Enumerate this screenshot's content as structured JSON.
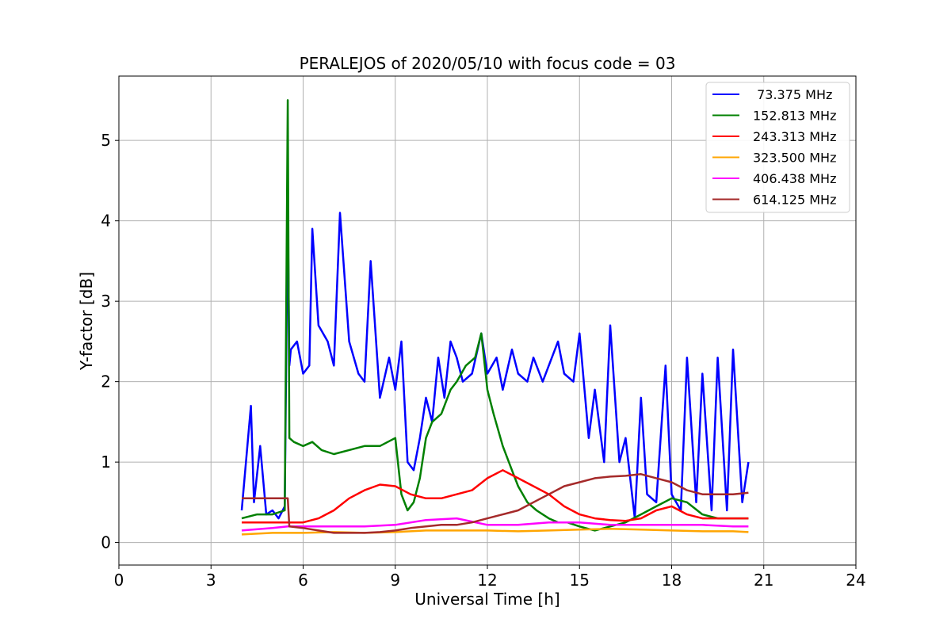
{
  "chart_data": {
    "type": "line",
    "title": "PERALEJOS of 2020/05/10 with focus code = 03",
    "xlabel": "Universal Time [h]",
    "ylabel": "Y-factor [dB]",
    "xlim": [
      0,
      24
    ],
    "ylim": [
      -0.28,
      5.8
    ],
    "xticks": [
      0,
      3,
      6,
      9,
      12,
      15,
      18,
      21,
      24
    ],
    "yticks": [
      0,
      1,
      2,
      3,
      4,
      5
    ],
    "grid": true,
    "legend_position": "top-right",
    "series": [
      {
        "name": " 73.375 MHz",
        "color": "#0000ff",
        "x": [
          4.0,
          4.3,
          4.4,
          4.6,
          4.8,
          5.0,
          5.2,
          5.4,
          5.5,
          5.55,
          5.6,
          5.8,
          6.0,
          6.2,
          6.3,
          6.5,
          6.8,
          7.0,
          7.2,
          7.5,
          7.8,
          8.0,
          8.2,
          8.5,
          8.8,
          9.0,
          9.2,
          9.4,
          9.6,
          9.8,
          10.0,
          10.2,
          10.4,
          10.6,
          10.8,
          11.0,
          11.2,
          11.5,
          11.8,
          12.0,
          12.3,
          12.5,
          12.8,
          13.0,
          13.3,
          13.5,
          13.8,
          14.0,
          14.3,
          14.5,
          14.8,
          15.0,
          15.3,
          15.5,
          15.8,
          16.0,
          16.3,
          16.5,
          16.8,
          17.0,
          17.2,
          17.5,
          17.8,
          18.0,
          18.3,
          18.5,
          18.8,
          19.0,
          19.3,
          19.5,
          19.8,
          20.0,
          20.3,
          20.5
        ],
        "y": [
          0.4,
          1.7,
          0.5,
          1.2,
          0.35,
          0.4,
          0.3,
          0.45,
          4.2,
          2.2,
          2.4,
          2.5,
          2.1,
          2.2,
          3.9,
          2.7,
          2.5,
          2.2,
          4.1,
          2.5,
          2.1,
          2.0,
          3.5,
          1.8,
          2.3,
          1.9,
          2.5,
          1.0,
          0.9,
          1.3,
          1.8,
          1.5,
          2.3,
          1.8,
          2.5,
          2.3,
          2.0,
          2.1,
          2.6,
          2.1,
          2.3,
          1.9,
          2.4,
          2.1,
          2.0,
          2.3,
          2.0,
          2.2,
          2.5,
          2.1,
          2.0,
          2.6,
          1.3,
          1.9,
          1.0,
          2.7,
          1.0,
          1.3,
          0.3,
          1.8,
          0.6,
          0.5,
          2.2,
          0.6,
          0.4,
          2.3,
          0.5,
          2.1,
          0.4,
          2.3,
          0.4,
          2.4,
          0.5,
          1.0
        ]
      },
      {
        "name": "152.813 MHz",
        "color": "#008000",
        "x": [
          4.0,
          4.5,
          5.0,
          5.4,
          5.5,
          5.55,
          5.7,
          6.0,
          6.3,
          6.6,
          7.0,
          7.5,
          8.0,
          8.5,
          9.0,
          9.2,
          9.4,
          9.6,
          9.8,
          10.0,
          10.2,
          10.5,
          10.8,
          11.0,
          11.3,
          11.6,
          11.8,
          12.0,
          12.2,
          12.5,
          12.8,
          13.0,
          13.3,
          13.6,
          14.0,
          14.3,
          14.6,
          15.0,
          15.5,
          16.0,
          16.5,
          17.0,
          17.5,
          18.0,
          18.5,
          19.0,
          19.5,
          20.0,
          20.5
        ],
        "y": [
          0.3,
          0.35,
          0.35,
          0.4,
          5.5,
          1.3,
          1.25,
          1.2,
          1.25,
          1.15,
          1.1,
          1.15,
          1.2,
          1.2,
          1.3,
          0.6,
          0.4,
          0.5,
          0.8,
          1.3,
          1.5,
          1.6,
          1.9,
          2.0,
          2.2,
          2.3,
          2.6,
          1.9,
          1.6,
          1.2,
          0.9,
          0.7,
          0.5,
          0.4,
          0.3,
          0.25,
          0.25,
          0.2,
          0.15,
          0.2,
          0.25,
          0.35,
          0.45,
          0.55,
          0.5,
          0.35,
          0.3,
          0.3,
          0.3
        ]
      },
      {
        "name": "243.313 MHz",
        "color": "#ff0000",
        "x": [
          4.0,
          5.0,
          5.5,
          6.0,
          6.5,
          7.0,
          7.5,
          8.0,
          8.5,
          9.0,
          9.5,
          10.0,
          10.5,
          11.0,
          11.5,
          12.0,
          12.5,
          13.0,
          13.5,
          14.0,
          14.5,
          15.0,
          15.5,
          16.0,
          16.5,
          17.0,
          17.5,
          18.0,
          18.5,
          19.0,
          19.5,
          20.0,
          20.5
        ],
        "y": [
          0.25,
          0.25,
          0.25,
          0.25,
          0.3,
          0.4,
          0.55,
          0.65,
          0.72,
          0.7,
          0.6,
          0.55,
          0.55,
          0.6,
          0.65,
          0.8,
          0.9,
          0.8,
          0.7,
          0.6,
          0.45,
          0.35,
          0.3,
          0.28,
          0.27,
          0.3,
          0.4,
          0.45,
          0.35,
          0.3,
          0.3,
          0.3,
          0.3
        ]
      },
      {
        "name": "323.500 MHz",
        "color": "#ffa500",
        "x": [
          4.0,
          5.0,
          6.0,
          7.0,
          8.0,
          9.0,
          10.0,
          11.0,
          12.0,
          13.0,
          14.0,
          15.0,
          16.0,
          17.0,
          18.0,
          19.0,
          20.0,
          20.5
        ],
        "y": [
          0.1,
          0.12,
          0.12,
          0.13,
          0.12,
          0.13,
          0.15,
          0.15,
          0.15,
          0.14,
          0.15,
          0.16,
          0.17,
          0.16,
          0.15,
          0.14,
          0.14,
          0.13
        ]
      },
      {
        "name": "406.438 MHz",
        "color": "#ff00ff",
        "x": [
          4.0,
          5.0,
          5.5,
          6.0,
          7.0,
          8.0,
          9.0,
          10.0,
          11.0,
          12.0,
          13.0,
          14.0,
          15.0,
          16.0,
          17.0,
          18.0,
          19.0,
          20.0,
          20.5
        ],
        "y": [
          0.15,
          0.18,
          0.2,
          0.2,
          0.2,
          0.2,
          0.22,
          0.28,
          0.3,
          0.22,
          0.22,
          0.25,
          0.25,
          0.22,
          0.22,
          0.22,
          0.22,
          0.2,
          0.2
        ]
      },
      {
        "name": "614.125 MHz",
        "color": "#a52a2a",
        "x": [
          4.0,
          4.5,
          5.0,
          5.5,
          5.55,
          6.0,
          6.5,
          7.0,
          7.5,
          8.0,
          8.5,
          9.0,
          9.5,
          10.0,
          10.5,
          11.0,
          11.5,
          12.0,
          12.5,
          13.0,
          13.5,
          14.0,
          14.5,
          15.0,
          15.5,
          16.0,
          16.5,
          17.0,
          17.5,
          18.0,
          18.5,
          19.0,
          19.5,
          20.0,
          20.5
        ],
        "y": [
          0.55,
          0.55,
          0.55,
          0.55,
          0.2,
          0.18,
          0.15,
          0.12,
          0.12,
          0.12,
          0.13,
          0.15,
          0.18,
          0.2,
          0.22,
          0.22,
          0.25,
          0.3,
          0.35,
          0.4,
          0.5,
          0.6,
          0.7,
          0.75,
          0.8,
          0.82,
          0.83,
          0.85,
          0.8,
          0.75,
          0.65,
          0.6,
          0.6,
          0.6,
          0.62
        ]
      }
    ]
  }
}
